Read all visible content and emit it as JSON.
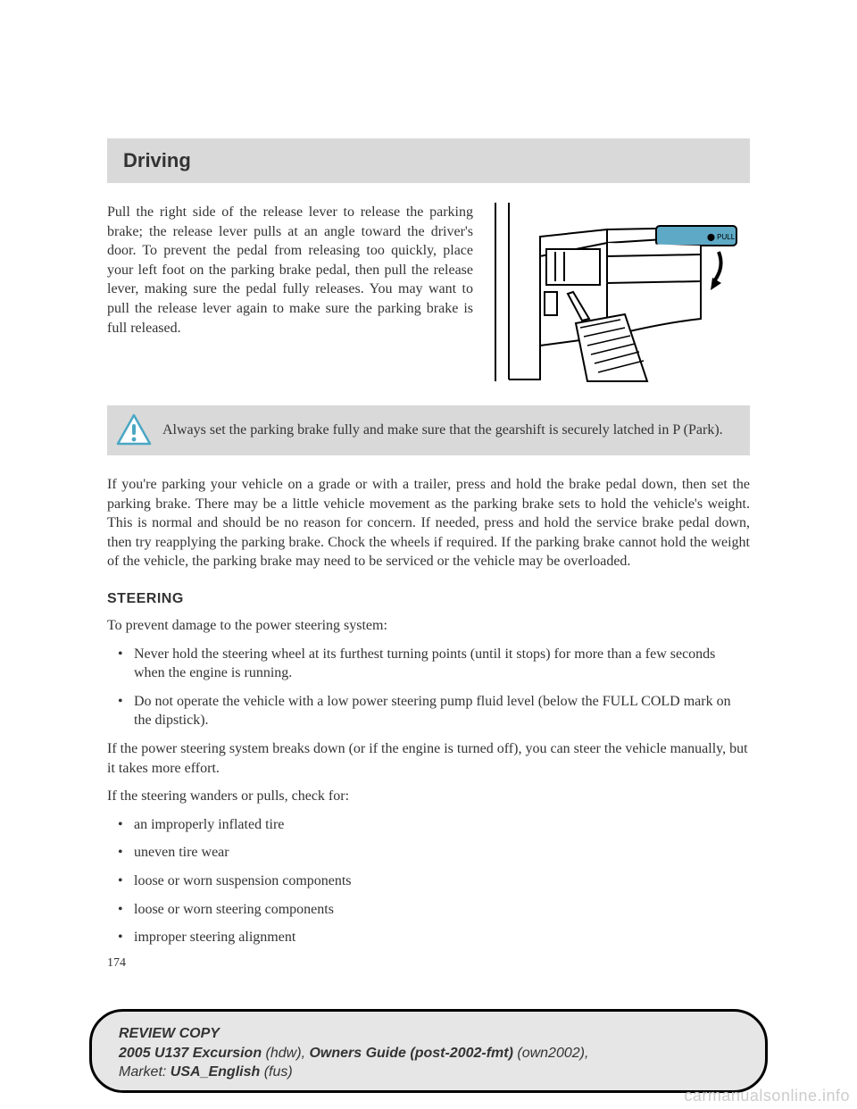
{
  "section_title": "Driving",
  "para1": "Pull the right side of the release lever to release the parking brake; the release lever pulls at an angle toward the driver's door. To prevent the pedal from releasing too quickly, place your left foot on the parking brake pedal, then pull the release lever, making sure the pedal fully releases. You may want to pull the release lever again to make sure the parking brake is full released.",
  "warning_text": "Always set the parking brake fully and make sure that the gearshift is securely latched in P (Park).",
  "para2": "If you're parking your vehicle on a grade or with a trailer, press and hold the brake pedal down, then set the parking brake. There may be a little vehicle movement as the parking brake sets to hold the vehicle's weight. This is normal and should be no reason for concern. If needed, press and hold the service brake pedal down, then try reapplying the parking brake. Chock the wheels if required. If the parking brake cannot hold the weight of the vehicle, the parking brake may need to be serviced or the vehicle may be overloaded.",
  "h2": "STEERING",
  "line1": "To prevent damage to the power steering system:",
  "bullets1": [
    "Never hold the steering wheel at its furthest turning points (until it stops) for more than a few seconds when the engine is running.",
    "Do not operate the vehicle with a low power steering pump fluid level (below the FULL COLD mark on the dipstick)."
  ],
  "line2": "If the power steering system breaks down (or if the engine is turned off), you can steer the vehicle manually, but it takes more effort.",
  "line3": "If the steering wanders or pulls, check for:",
  "bullets2": [
    "an improperly inflated tire",
    "uneven tire wear",
    "loose or worn suspension components",
    "loose or worn steering components",
    "improper steering alignment"
  ],
  "page_number": "174",
  "footer": {
    "l1a": "REVIEW COPY",
    "l2a": "2005 U137 Excursion ",
    "l2b": "(hdw)",
    "l2c": ", ",
    "l2d": "Owners Guide (post-2002-fmt) ",
    "l2e": "(own2002)",
    "l2f": ",",
    "l3a": "Market: ",
    "l3b": "USA_English ",
    "l3c": "(fus)"
  },
  "watermark": "carmanualsonline.info",
  "illustration": {
    "pull_label": "PULL",
    "colors": {
      "stroke": "#000000",
      "fill_none": "none",
      "handle": "#5da9c6"
    }
  },
  "warning_icon": {
    "tri_fill": "#ffffff",
    "tri_stroke": "#4aa7c4",
    "glyph_fill": "#4aa7c4"
  }
}
